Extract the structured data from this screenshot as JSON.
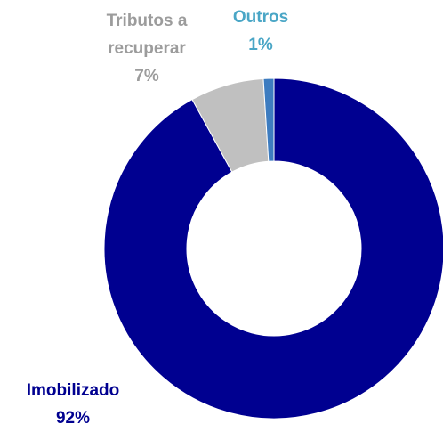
{
  "chart_data": {
    "type": "donut",
    "categories": [
      "Imobilizado",
      "Tributos a recuperar",
      "Outros"
    ],
    "values": [
      92,
      7,
      1
    ],
    "value_labels": [
      "92%",
      "7%",
      "1%"
    ],
    "colors": [
      "#000090",
      "#c0c0c0",
      "#3d7cc0"
    ],
    "label_colors": [
      "#000090",
      "#9c9c9c",
      "#4aa6c6"
    ]
  }
}
